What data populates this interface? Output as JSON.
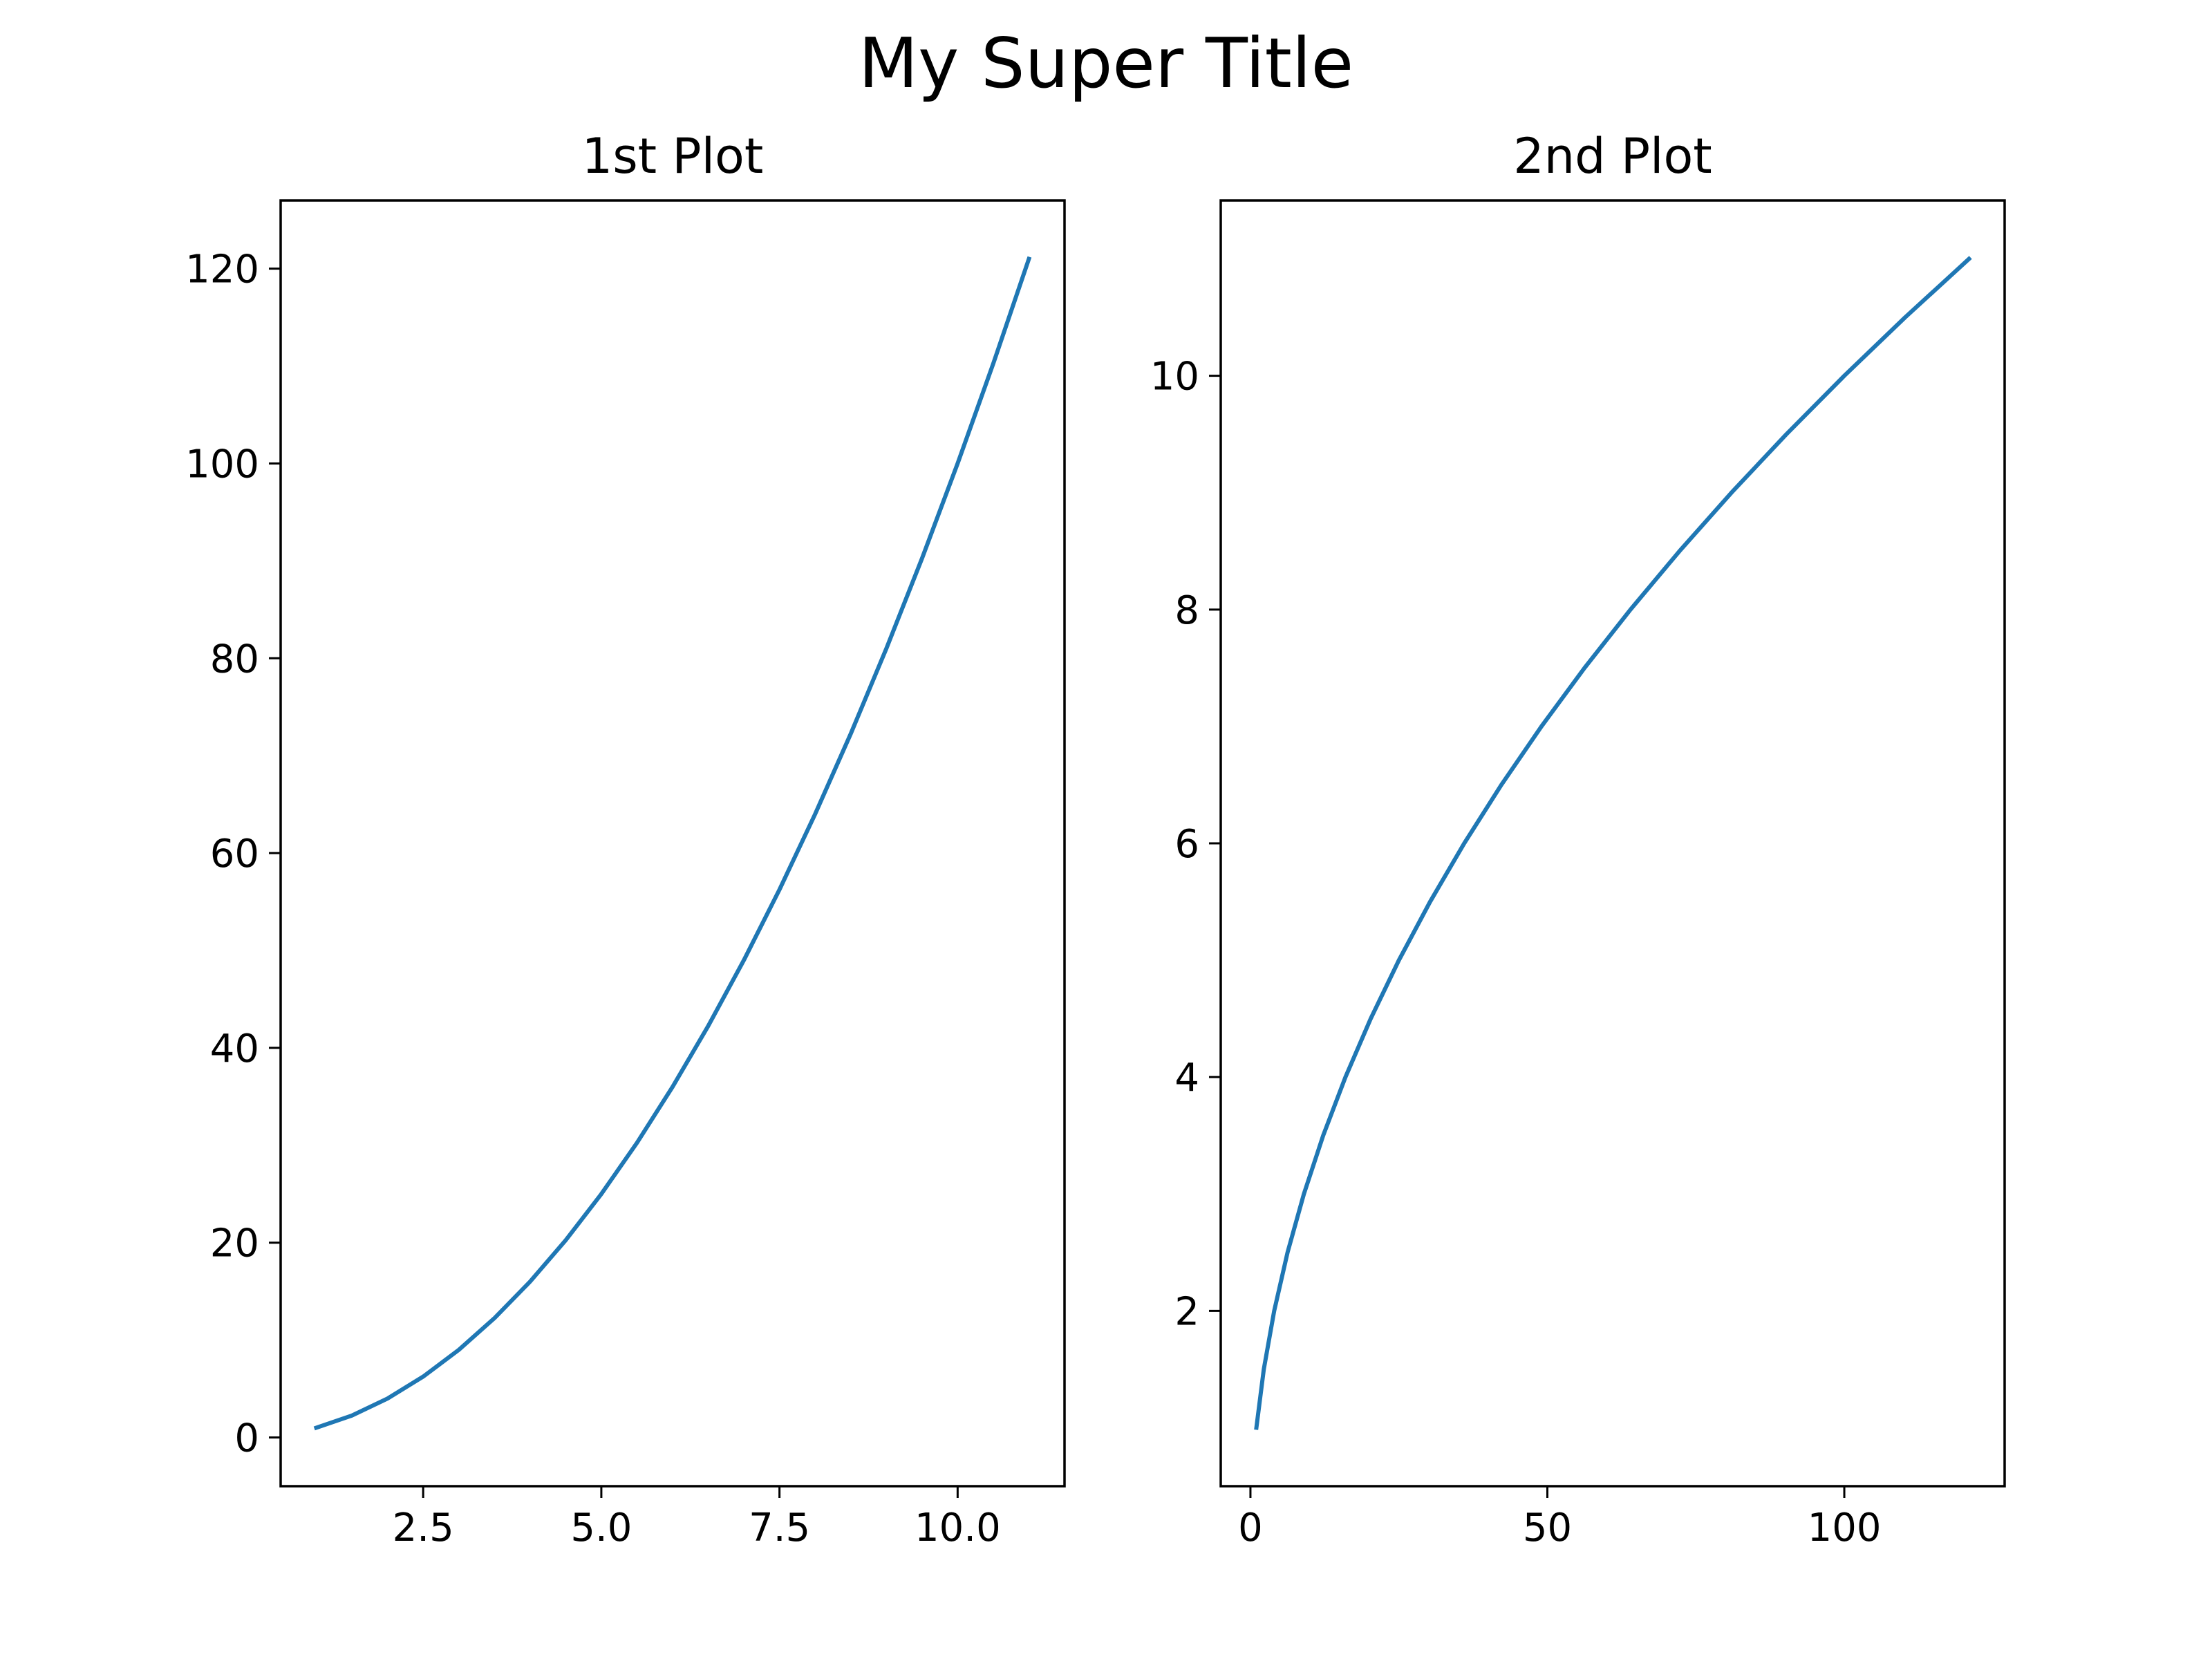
{
  "figure": {
    "suptitle": "My Super Title"
  },
  "chart_data": [
    {
      "type": "line",
      "title": "1st Plot",
      "xlabel": "",
      "ylabel": "",
      "xlim": [
        0.5,
        11.5
      ],
      "ylim": [
        -5,
        127
      ],
      "xticks": [
        2.5,
        5.0,
        7.5,
        10.0
      ],
      "xtick_labels": [
        "2.5",
        "5.0",
        "7.5",
        "10.0"
      ],
      "yticks": [
        0,
        20,
        40,
        60,
        80,
        100,
        120
      ],
      "ytick_labels": [
        "0",
        "20",
        "40",
        "60",
        "80",
        "100",
        "120"
      ],
      "grid": false,
      "series": [
        {
          "color": "#1f77b4",
          "x": [
            1.0,
            1.5,
            2.0,
            2.5,
            3.0,
            3.5,
            4.0,
            4.5,
            5.0,
            5.5,
            6.0,
            6.5,
            7.0,
            7.5,
            8.0,
            8.5,
            9.0,
            9.5,
            10.0,
            10.5,
            11.0
          ],
          "y": [
            1.0,
            2.25,
            4.0,
            6.25,
            9.0,
            12.25,
            16.0,
            20.25,
            25.0,
            30.25,
            36.0,
            42.25,
            49.0,
            56.25,
            64.0,
            72.25,
            81.0,
            90.25,
            100.0,
            110.25,
            121.0
          ]
        }
      ]
    },
    {
      "type": "line",
      "title": "2nd Plot",
      "xlabel": "",
      "ylabel": "",
      "xlim": [
        -5,
        127
      ],
      "ylim": [
        0.5,
        11.5
      ],
      "xticks": [
        0,
        50,
        100
      ],
      "xtick_labels": [
        "0",
        "50",
        "100"
      ],
      "yticks": [
        2,
        4,
        6,
        8,
        10
      ],
      "ytick_labels": [
        "2",
        "4",
        "6",
        "8",
        "10"
      ],
      "grid": false,
      "series": [
        {
          "color": "#1f77b4",
          "x": [
            1.0,
            2.25,
            4.0,
            6.25,
            9.0,
            12.25,
            16.0,
            20.25,
            25.0,
            30.25,
            36.0,
            42.25,
            49.0,
            56.25,
            64.0,
            72.25,
            81.0,
            90.25,
            100.0,
            110.25,
            121.0
          ],
          "y": [
            1.0,
            1.5,
            2.0,
            2.5,
            3.0,
            3.5,
            4.0,
            4.5,
            5.0,
            5.5,
            6.0,
            6.5,
            7.0,
            7.5,
            8.0,
            8.5,
            9.0,
            9.5,
            10.0,
            10.5,
            11.0
          ]
        }
      ]
    }
  ]
}
